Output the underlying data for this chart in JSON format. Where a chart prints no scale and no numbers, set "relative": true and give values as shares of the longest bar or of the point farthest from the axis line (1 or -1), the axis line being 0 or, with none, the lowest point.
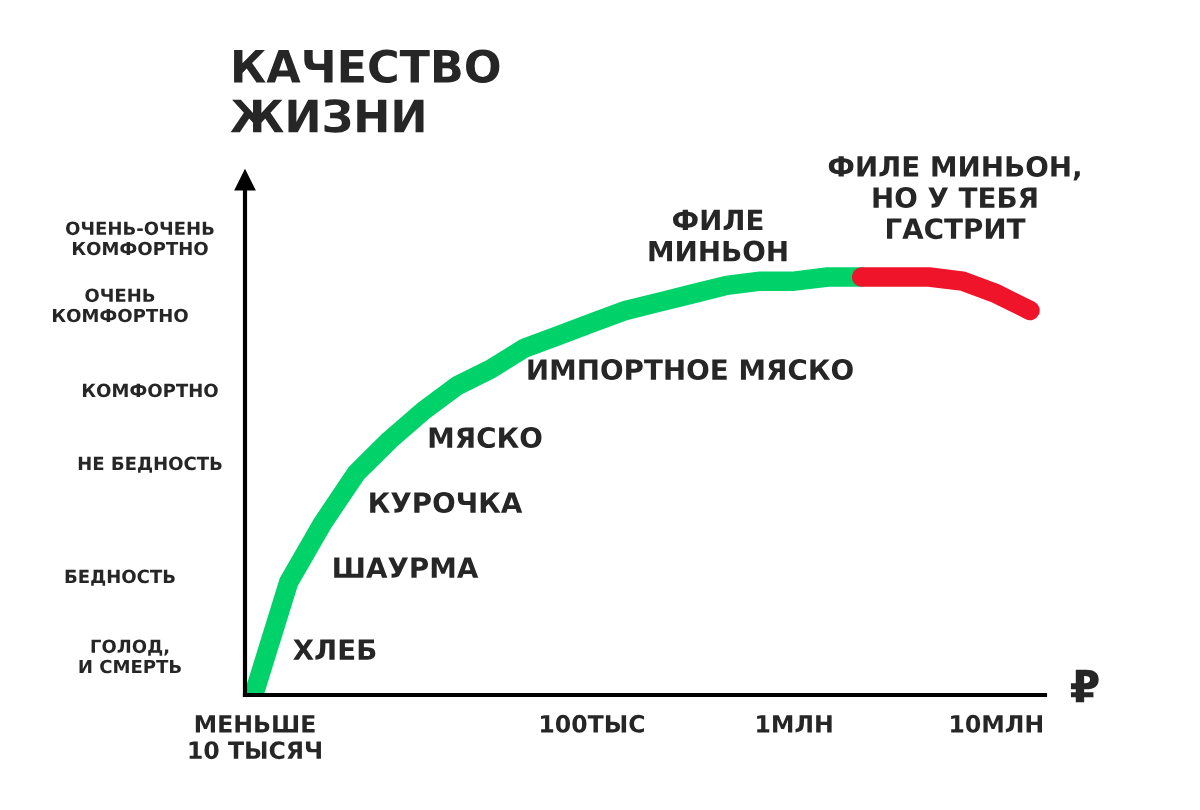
{
  "chart_data": {
    "type": "line",
    "ylabel": "КАЧЕСТВО\nЖИЗНИ",
    "xlabel": "₽",
    "relative": true,
    "categories": [
      "МЕНЬШЕ\n10 ТЫСЯЧ",
      null,
      null,
      null,
      null,
      null,
      null,
      null,
      null,
      null,
      "100ТЫС",
      null,
      null,
      null,
      null,
      null,
      "1МЛН",
      null,
      null,
      null,
      null,
      null,
      "10МЛН",
      null
    ],
    "series": [
      {
        "color": "#00d26a",
        "values": [
          0.01,
          0.27,
          0.41,
          0.53,
          0.61,
          0.68,
          0.74,
          0.78,
          0.83,
          0.86,
          0.89,
          0.92,
          0.94,
          0.96,
          0.98,
          0.99,
          0.99,
          1.0,
          1.0,
          null,
          null,
          null,
          null,
          null
        ]
      },
      {
        "color": "#f0142a",
        "values": [
          null,
          null,
          null,
          null,
          null,
          null,
          null,
          null,
          null,
          null,
          null,
          null,
          null,
          null,
          null,
          null,
          null,
          null,
          1.0,
          1.0,
          1.0,
          0.99,
          0.96,
          0.92
        ]
      }
    ],
    "annotations": [
      "ОЧЕНЬ-ОЧЕНЬ\nКОМФОРТНО",
      "ОЧЕНЬ\nКОМФОРТНО",
      "КОМФОРТНО",
      "НЕ БЕДНОСТЬ",
      "БЕДНОСТЬ",
      "ГОЛОД,\nИ СМЕРТЬ",
      "ХЛЕБ",
      "ШАУРМА",
      "КУРОЧКА",
      "МЯСКО",
      "ИМПОРТНОЕ МЯСКО",
      "ФИЛЕ\nМИНЬОН",
      "ФИЛЕ МИНЬОН,\nНО У ТЕБЯ\nГАСТРИТ"
    ],
    "grid": false,
    "legend": false,
    "marker": "none",
    "line_style": "solid"
  }
}
